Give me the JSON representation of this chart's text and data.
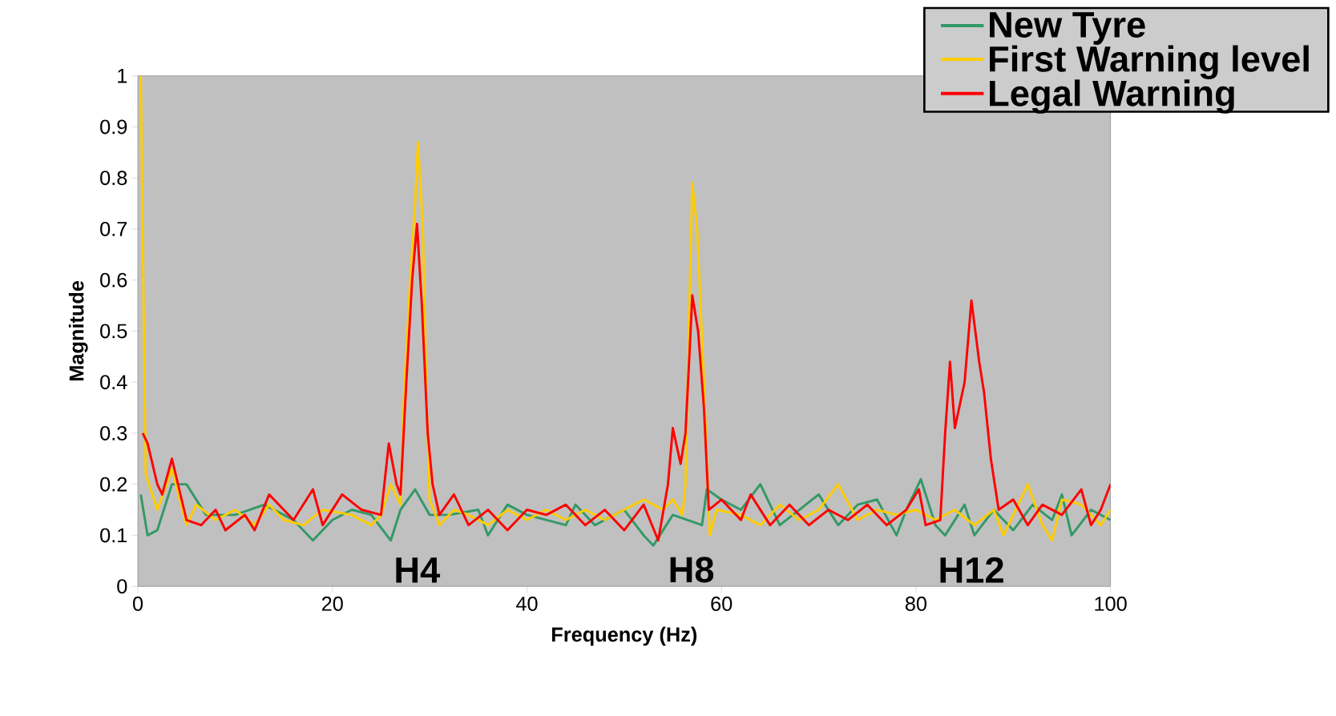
{
  "chart_data": {
    "type": "line",
    "xlabel": "Frequency (Hz)",
    "ylabel": "Magnitude",
    "xlim": [
      0,
      100
    ],
    "xticks": [
      0,
      20,
      40,
      60,
      80,
      100
    ],
    "ylim": [
      0,
      1
    ],
    "yticks": [
      0,
      0.1,
      0.2,
      0.3,
      0.4,
      0.5,
      0.6,
      0.7,
      0.8,
      0.9,
      1
    ],
    "grid": false,
    "legend": "top right",
    "marker": "none",
    "line_style": "solid",
    "annotations": [
      "H4",
      "H8",
      "H12"
    ],
    "series": [
      {
        "name": "New Tyre",
        "color": "#339966",
        "x": [
          0.3,
          1,
          2,
          3.5,
          5,
          7,
          10,
          13,
          16,
          18,
          20,
          22,
          24,
          26,
          27,
          28.5,
          30,
          32,
          35,
          36,
          38,
          40,
          42,
          44,
          45,
          47,
          50,
          52,
          53,
          55,
          58,
          58.5,
          60,
          62,
          64,
          66,
          68,
          70,
          72,
          74,
          76,
          78,
          79,
          80.5,
          82,
          83,
          85,
          86,
          88,
          90,
          92,
          94,
          95,
          96,
          98,
          100
        ],
        "values": [
          0.18,
          0.1,
          0.11,
          0.2,
          0.2,
          0.14,
          0.14,
          0.16,
          0.13,
          0.09,
          0.13,
          0.15,
          0.14,
          0.09,
          0.15,
          0.19,
          0.14,
          0.14,
          0.15,
          0.1,
          0.16,
          0.14,
          0.13,
          0.12,
          0.16,
          0.12,
          0.15,
          0.1,
          0.08,
          0.14,
          0.12,
          0.19,
          0.17,
          0.15,
          0.2,
          0.12,
          0.15,
          0.18,
          0.12,
          0.16,
          0.17,
          0.1,
          0.15,
          0.21,
          0.12,
          0.1,
          0.16,
          0.1,
          0.15,
          0.11,
          0.16,
          0.13,
          0.18,
          0.1,
          0.15,
          0.13
        ]
      },
      {
        "name": "First Warning level",
        "color": "#ffcc00",
        "x": [
          0.3,
          0.8,
          2,
          3.5,
          5,
          6,
          8,
          10,
          12,
          13.5,
          15,
          17,
          19,
          22,
          24,
          25,
          26,
          27,
          27.3,
          28,
          28.5,
          28.8,
          29.3,
          29.7,
          30,
          31,
          32.5,
          34,
          36,
          38,
          40,
          42,
          44,
          46,
          48,
          50,
          52,
          54,
          55,
          56,
          56.3,
          56.7,
          57,
          57.5,
          58.2,
          58.8,
          59.5,
          62,
          64,
          66,
          68,
          70,
          72,
          74,
          76,
          78,
          80,
          82,
          84,
          86,
          88,
          89,
          91.5,
          93,
          94,
          95,
          97,
          99,
          100
        ],
        "values": [
          1,
          0.22,
          0.15,
          0.23,
          0.12,
          0.16,
          0.13,
          0.15,
          0.12,
          0.16,
          0.13,
          0.12,
          0.15,
          0.14,
          0.12,
          0.14,
          0.2,
          0.16,
          0.35,
          0.6,
          0.75,
          0.87,
          0.7,
          0.35,
          0.17,
          0.12,
          0.15,
          0.14,
          0.12,
          0.15,
          0.13,
          0.15,
          0.13,
          0.15,
          0.13,
          0.15,
          0.17,
          0.15,
          0.17,
          0.14,
          0.2,
          0.55,
          0.79,
          0.7,
          0.4,
          0.1,
          0.15,
          0.14,
          0.12,
          0.16,
          0.13,
          0.15,
          0.2,
          0.13,
          0.15,
          0.14,
          0.15,
          0.13,
          0.15,
          0.12,
          0.15,
          0.1,
          0.2,
          0.12,
          0.09,
          0.17,
          0.16,
          0.12,
          0.15
        ]
      },
      {
        "name": "Legal Warning",
        "color": "#ff0000",
        "x": [
          0.5,
          1,
          2,
          2.5,
          3.5,
          5,
          6.5,
          8,
          9,
          11,
          12,
          13.5,
          16,
          18,
          19,
          21,
          23,
          25,
          25.8,
          26.6,
          27,
          27.6,
          28.2,
          28.7,
          29.2,
          29.8,
          30.3,
          31,
          32.5,
          34,
          36,
          38,
          40,
          42,
          44,
          46,
          48,
          50,
          52,
          53.5,
          54.5,
          55,
          55.8,
          56.3,
          56.7,
          57,
          57.6,
          58.2,
          58.7,
          60,
          62,
          63,
          65,
          67,
          69,
          71,
          73,
          75,
          77,
          79,
          80.3,
          81,
          82.5,
          83,
          83.5,
          84,
          85,
          85.7,
          86.5,
          87,
          87.7,
          88.5,
          90,
          91.5,
          93,
          95,
          97,
          98,
          99,
          100
        ],
        "values": [
          0.3,
          0.28,
          0.2,
          0.18,
          0.25,
          0.13,
          0.12,
          0.15,
          0.11,
          0.14,
          0.11,
          0.18,
          0.13,
          0.19,
          0.12,
          0.18,
          0.15,
          0.14,
          0.28,
          0.2,
          0.18,
          0.4,
          0.6,
          0.71,
          0.55,
          0.3,
          0.2,
          0.14,
          0.18,
          0.12,
          0.15,
          0.11,
          0.15,
          0.14,
          0.16,
          0.12,
          0.15,
          0.11,
          0.16,
          0.09,
          0.2,
          0.31,
          0.24,
          0.3,
          0.45,
          0.57,
          0.5,
          0.35,
          0.15,
          0.17,
          0.13,
          0.18,
          0.12,
          0.16,
          0.12,
          0.15,
          0.13,
          0.16,
          0.12,
          0.15,
          0.19,
          0.12,
          0.13,
          0.3,
          0.44,
          0.31,
          0.4,
          0.56,
          0.44,
          0.38,
          0.25,
          0.15,
          0.17,
          0.12,
          0.16,
          0.14,
          0.19,
          0.12,
          0.15,
          0.2
        ]
      }
    ]
  }
}
